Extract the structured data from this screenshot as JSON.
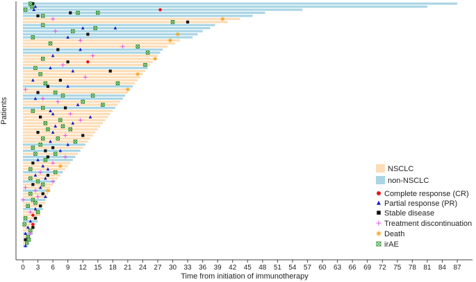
{
  "chart_data": {
    "type": "swimmer",
    "ylabel": "Patients",
    "xlabel": "Time from initiation of immunotherapy",
    "x_ticks": [
      0,
      3,
      6,
      9,
      12,
      15,
      18,
      21,
      24,
      27,
      30,
      33,
      36,
      39,
      42,
      45,
      48,
      51,
      54,
      57,
      60,
      63,
      66,
      69,
      72,
      75,
      78,
      81,
      84,
      87
    ],
    "xlim": [
      -0.5,
      89
    ],
    "legend": {
      "placement": "bottom-right",
      "bar_entries": [
        {
          "key": "nsclc",
          "label": "NSCLC",
          "color": "#FCDDB7"
        },
        {
          "key": "non",
          "label": "non-NSCLC",
          "color": "#A9D5E4"
        }
      ],
      "marker_entries": [
        {
          "key": "cr",
          "label": "Complete response (CR)",
          "color": "#E8151B"
        },
        {
          "key": "pr",
          "label": "Partial response (PR)",
          "color": "#1C1CB8"
        },
        {
          "key": "sd",
          "label": "Stable disease",
          "color": "#111111"
        },
        {
          "key": "td",
          "label": "Treatment discontinuation",
          "color": "#E64FE6"
        },
        {
          "key": "death",
          "label": "Death",
          "color": "#F5A623"
        },
        {
          "key": "irae",
          "label": "irAE",
          "color": "#1F8A1F"
        }
      ]
    },
    "bars": [
      {
        "d": 87,
        "g": "non"
      },
      {
        "d": 81,
        "g": "non"
      },
      {
        "d": 56,
        "g": "non"
      },
      {
        "d": 48.5,
        "g": "non"
      },
      {
        "d": 46,
        "g": "non"
      },
      {
        "d": 43.5,
        "g": "nsclc"
      },
      {
        "d": 41,
        "g": "nsclc"
      },
      {
        "d": 38.5,
        "g": "non"
      },
      {
        "d": 37.5,
        "g": "non"
      },
      {
        "d": 36,
        "g": "non"
      },
      {
        "d": 35,
        "g": "non"
      },
      {
        "d": 34,
        "g": "non"
      },
      {
        "d": 31.5,
        "g": "nsclc"
      },
      {
        "d": 30.5,
        "g": "nsclc"
      },
      {
        "d": 29,
        "g": "nsclc"
      },
      {
        "d": 28,
        "g": "non"
      },
      {
        "d": 27.5,
        "g": "non"
      },
      {
        "d": 27,
        "g": "nsclc"
      },
      {
        "d": 26.5,
        "g": "nsclc"
      },
      {
        "d": 26,
        "g": "nsclc"
      },
      {
        "d": 25.5,
        "g": "nsclc"
      },
      {
        "d": 25,
        "g": "non"
      },
      {
        "d": 24.5,
        "g": "nsclc"
      },
      {
        "d": 24,
        "g": "nsclc"
      },
      {
        "d": 23.5,
        "g": "nsclc"
      },
      {
        "d": 23,
        "g": "nsclc"
      },
      {
        "d": 22.5,
        "g": "nsclc"
      },
      {
        "d": 22,
        "g": "non"
      },
      {
        "d": 21.5,
        "g": "nsclc"
      },
      {
        "d": 21,
        "g": "nsclc"
      },
      {
        "d": 20.5,
        "g": "non"
      },
      {
        "d": 20,
        "g": "non"
      },
      {
        "d": 19.5,
        "g": "nsclc"
      },
      {
        "d": 19,
        "g": "nsclc"
      },
      {
        "d": 18.5,
        "g": "non"
      },
      {
        "d": 18,
        "g": "nsclc"
      },
      {
        "d": 17.5,
        "g": "nsclc"
      },
      {
        "d": 17,
        "g": "nsclc"
      },
      {
        "d": 16.5,
        "g": "nsclc"
      },
      {
        "d": 16,
        "g": "nsclc"
      },
      {
        "d": 15.5,
        "g": "nsclc"
      },
      {
        "d": 15,
        "g": "nsclc"
      },
      {
        "d": 14.5,
        "g": "nsclc"
      },
      {
        "d": 14,
        "g": "nsclc"
      },
      {
        "d": 13.5,
        "g": "nsclc"
      },
      {
        "d": 13,
        "g": "nsclc"
      },
      {
        "d": 12.5,
        "g": "non"
      },
      {
        "d": 12,
        "g": "nsclc"
      },
      {
        "d": 11.5,
        "g": "non"
      },
      {
        "d": 11,
        "g": "nsclc"
      },
      {
        "d": 10.5,
        "g": "non"
      },
      {
        "d": 10,
        "g": "non"
      },
      {
        "d": 9.5,
        "g": "nsclc"
      },
      {
        "d": 9,
        "g": "nsclc"
      },
      {
        "d": 8.5,
        "g": "nsclc"
      },
      {
        "d": 8,
        "g": "non"
      },
      {
        "d": 7.5,
        "g": "nsclc"
      },
      {
        "d": 7,
        "g": "nsclc"
      },
      {
        "d": 6.5,
        "g": "non"
      },
      {
        "d": 6,
        "g": "nsclc"
      },
      {
        "d": 5.5,
        "g": "nsclc"
      },
      {
        "d": 5.5,
        "g": "non"
      },
      {
        "d": 5,
        "g": "nsclc"
      },
      {
        "d": 5,
        "g": "nsclc"
      },
      {
        "d": 4.5,
        "g": "non"
      },
      {
        "d": 4.5,
        "g": "nsclc"
      },
      {
        "d": 4,
        "g": "nsclc"
      },
      {
        "d": 4,
        "g": "non"
      },
      {
        "d": 3.5,
        "g": "nsclc"
      },
      {
        "d": 3.5,
        "g": "nsclc"
      },
      {
        "d": 3,
        "g": "nsclc"
      },
      {
        "d": 3,
        "g": "non"
      },
      {
        "d": 2.5,
        "g": "nsclc"
      },
      {
        "d": 2.5,
        "g": "nsclc"
      },
      {
        "d": 2,
        "g": "nsclc"
      },
      {
        "d": 2,
        "g": "non"
      },
      {
        "d": 1.5,
        "g": "nsclc"
      },
      {
        "d": 1.5,
        "g": "nsclc"
      },
      {
        "d": 1,
        "g": "nsclc"
      },
      {
        "d": 1,
        "g": "non"
      }
    ],
    "events": [
      {
        "p": 0,
        "t": 2,
        "k": "sd"
      },
      {
        "p": 0,
        "t": 1.5,
        "k": "irae"
      },
      {
        "p": 1,
        "t": 2.5,
        "k": "pr"
      },
      {
        "p": 1,
        "t": 1.8,
        "k": "irae"
      },
      {
        "p": 2,
        "t": 0.5,
        "k": "irae"
      },
      {
        "p": 2,
        "t": 2.2,
        "k": "pr"
      },
      {
        "p": 2,
        "t": 27.5,
        "k": "cr"
      },
      {
        "p": 3,
        "t": 9.5,
        "k": "sd"
      },
      {
        "p": 3,
        "t": 11,
        "k": "irae"
      },
      {
        "p": 3,
        "t": 15,
        "k": "irae"
      },
      {
        "p": 4,
        "t": 3,
        "k": "sd"
      },
      {
        "p": 4,
        "t": 4,
        "k": "irae"
      },
      {
        "p": 5,
        "t": 40,
        "k": "death"
      },
      {
        "p": 5,
        "t": 6,
        "k": "td"
      },
      {
        "p": 6,
        "t": 33,
        "k": "sd"
      },
      {
        "p": 6,
        "t": 30,
        "k": "irae"
      },
      {
        "p": 7,
        "t": 4,
        "k": "irae"
      },
      {
        "p": 8,
        "t": 12,
        "k": "pr"
      },
      {
        "p": 8,
        "t": 14.5,
        "k": "irae"
      },
      {
        "p": 8,
        "t": 18.5,
        "k": "pr"
      },
      {
        "p": 9,
        "t": 6.5,
        "k": "td"
      },
      {
        "p": 9,
        "t": 10,
        "k": "irae"
      },
      {
        "p": 10,
        "t": 31,
        "k": "death"
      },
      {
        "p": 10,
        "t": 13,
        "k": "sd"
      },
      {
        "p": 11,
        "t": 2,
        "k": "irae"
      },
      {
        "p": 11,
        "t": 9,
        "k": "pr"
      },
      {
        "p": 12,
        "t": 29.5,
        "k": "death"
      },
      {
        "p": 12,
        "t": 11.5,
        "k": "td"
      },
      {
        "p": 13,
        "t": 5.5,
        "k": "irae"
      },
      {
        "p": 14,
        "t": 20,
        "k": "td"
      },
      {
        "p": 14,
        "t": 23,
        "k": "irae"
      },
      {
        "p": 15,
        "t": 11.5,
        "k": "pr"
      },
      {
        "p": 15,
        "t": 7,
        "k": "sd"
      },
      {
        "p": 16,
        "t": 25,
        "k": "irae"
      },
      {
        "p": 17,
        "t": 14,
        "k": "td"
      },
      {
        "p": 17,
        "t": 6,
        "k": "pr"
      },
      {
        "p": 18,
        "t": 4,
        "k": "irae"
      },
      {
        "p": 18,
        "t": 26.5,
        "k": "death"
      },
      {
        "p": 19,
        "t": 9,
        "k": "sd"
      },
      {
        "p": 19,
        "t": 13,
        "k": "cr"
      },
      {
        "p": 20,
        "t": 8,
        "k": "td"
      },
      {
        "p": 20,
        "t": 24.5,
        "k": "irae"
      },
      {
        "p": 21,
        "t": 2.5,
        "k": "irae"
      },
      {
        "p": 21,
        "t": 5.5,
        "k": "pr"
      },
      {
        "p": 22,
        "t": 10,
        "k": "pr"
      },
      {
        "p": 22,
        "t": 17.5,
        "k": "sd"
      },
      {
        "p": 23,
        "t": 23,
        "k": "death"
      },
      {
        "p": 23,
        "t": 3.5,
        "k": "irae"
      },
      {
        "p": 24,
        "t": 12.5,
        "k": "td"
      },
      {
        "p": 25,
        "t": 7.5,
        "k": "sd"
      },
      {
        "p": 25,
        "t": 2,
        "k": "pr"
      },
      {
        "p": 26,
        "t": 4.5,
        "k": "irae"
      },
      {
        "p": 26,
        "t": 19,
        "k": "irae"
      },
      {
        "p": 27,
        "t": 5,
        "k": "sd"
      },
      {
        "p": 27,
        "t": 9,
        "k": "pr"
      },
      {
        "p": 28,
        "t": 0.5,
        "k": "td"
      },
      {
        "p": 28,
        "t": 21,
        "k": "death"
      },
      {
        "p": 29,
        "t": 3,
        "k": "sd"
      },
      {
        "p": 29,
        "t": 6.5,
        "k": "irae"
      },
      {
        "p": 30,
        "t": 8,
        "k": "irae"
      },
      {
        "p": 30,
        "t": 14,
        "k": "irae"
      },
      {
        "p": 31,
        "t": 2.5,
        "k": "pr"
      },
      {
        "p": 31,
        "t": 4,
        "k": "td"
      },
      {
        "p": 32,
        "t": 7,
        "k": "td"
      },
      {
        "p": 32,
        "t": 12,
        "k": "irae"
      },
      {
        "p": 33,
        "t": 11,
        "k": "pr"
      },
      {
        "p": 33,
        "t": 16,
        "k": "irae"
      },
      {
        "p": 34,
        "t": 4,
        "k": "irae"
      },
      {
        "p": 34,
        "t": 8.5,
        "k": "sd"
      },
      {
        "p": 35,
        "t": 2,
        "k": "irae"
      },
      {
        "p": 35,
        "t": 5.5,
        "k": "pr"
      },
      {
        "p": 36,
        "t": 6,
        "k": "pr"
      },
      {
        "p": 36,
        "t": 9.5,
        "k": "td"
      },
      {
        "p": 37,
        "t": 3.5,
        "k": "sd"
      },
      {
        "p": 37,
        "t": 13.5,
        "k": "pr"
      },
      {
        "p": 38,
        "t": 7.5,
        "k": "irae"
      },
      {
        "p": 38,
        "t": 11.5,
        "k": "td"
      },
      {
        "p": 39,
        "t": 4.5,
        "k": "irae"
      },
      {
        "p": 39,
        "t": 10,
        "k": "pr"
      },
      {
        "p": 40,
        "t": 6.5,
        "k": "pr"
      },
      {
        "p": 40,
        "t": 8,
        "k": "irae"
      },
      {
        "p": 41,
        "t": 5,
        "k": "irae"
      },
      {
        "p": 41,
        "t": 9.5,
        "k": "irae"
      },
      {
        "p": 42,
        "t": 3,
        "k": "sd"
      },
      {
        "p": 42,
        "t": 6,
        "k": "pr"
      },
      {
        "p": 43,
        "t": 8.5,
        "k": "td"
      },
      {
        "p": 43,
        "t": 12,
        "k": "sd"
      },
      {
        "p": 44,
        "t": 4,
        "k": "irae"
      },
      {
        "p": 44,
        "t": 7,
        "k": "irae"
      },
      {
        "p": 45,
        "t": 5.5,
        "k": "pr"
      },
      {
        "p": 45,
        "t": 10.5,
        "k": "irae"
      },
      {
        "p": 46,
        "t": 3.5,
        "k": "irae"
      },
      {
        "p": 46,
        "t": 9,
        "k": "pr"
      },
      {
        "p": 47,
        "t": 6,
        "k": "sd"
      },
      {
        "p": 47,
        "t": 2,
        "k": "irae"
      },
      {
        "p": 48,
        "t": 7.5,
        "k": "pr"
      },
      {
        "p": 48,
        "t": 4.5,
        "k": "sd"
      },
      {
        "p": 49,
        "t": 2.5,
        "k": "irae"
      },
      {
        "p": 49,
        "t": 6.5,
        "k": "irae"
      },
      {
        "p": 50,
        "t": 5,
        "k": "sd"
      },
      {
        "p": 50,
        "t": 8.5,
        "k": "td"
      },
      {
        "p": 51,
        "t": 3,
        "k": "pr"
      },
      {
        "p": 51,
        "t": 4.5,
        "k": "irae"
      },
      {
        "p": 52,
        "t": 6,
        "k": "td"
      },
      {
        "p": 52,
        "t": 2,
        "k": "sd"
      },
      {
        "p": 53,
        "t": 4,
        "k": "pr"
      },
      {
        "p": 53,
        "t": 7.5,
        "k": "death"
      },
      {
        "p": 54,
        "t": 1.5,
        "k": "irae"
      },
      {
        "p": 54,
        "t": 5,
        "k": "pr"
      },
      {
        "p": 55,
        "t": 3.5,
        "k": "td"
      },
      {
        "p": 55,
        "t": 6.5,
        "k": "irae"
      },
      {
        "p": 56,
        "t": 2.5,
        "k": "pr"
      },
      {
        "p": 56,
        "t": 5,
        "k": "sd"
      },
      {
        "p": 57,
        "t": 4.5,
        "k": "pr"
      },
      {
        "p": 57,
        "t": 1.5,
        "k": "irae"
      },
      {
        "p": 58,
        "t": 3,
        "k": "irae"
      },
      {
        "p": 58,
        "t": 6,
        "k": "td"
      },
      {
        "p": 59,
        "t": 2,
        "k": "sd"
      },
      {
        "p": 59,
        "t": 4,
        "k": "irae"
      },
      {
        "p": 60,
        "t": 0.5,
        "k": "td"
      },
      {
        "p": 60,
        "t": 3.5,
        "k": "pr"
      },
      {
        "p": 61,
        "t": 2.5,
        "k": "td"
      },
      {
        "p": 61,
        "t": 5,
        "k": "death"
      },
      {
        "p": 62,
        "t": 1.5,
        "k": "irae"
      },
      {
        "p": 62,
        "t": 4,
        "k": "sd"
      },
      {
        "p": 63,
        "t": 3,
        "k": "td"
      },
      {
        "p": 63,
        "t": 4.5,
        "k": "pr"
      },
      {
        "p": 64,
        "t": 2,
        "k": "irae"
      },
      {
        "p": 64,
        "t": 0,
        "k": "td"
      },
      {
        "p": 65,
        "t": 2.5,
        "k": "irae"
      },
      {
        "p": 66,
        "t": 3.5,
        "k": "sd"
      },
      {
        "p": 66,
        "t": 1,
        "k": "irae"
      },
      {
        "p": 67,
        "t": 2.5,
        "k": "pr"
      },
      {
        "p": 68,
        "t": 1.5,
        "k": "td"
      },
      {
        "p": 68,
        "t": 3,
        "k": "irae"
      },
      {
        "p": 69,
        "t": 2,
        "k": "cr"
      },
      {
        "p": 70,
        "t": 0.5,
        "k": "irae"
      },
      {
        "p": 70,
        "t": 2.5,
        "k": "sd"
      },
      {
        "p": 71,
        "t": 1.5,
        "k": "pr"
      },
      {
        "p": 72,
        "t": 2,
        "k": "cr"
      },
      {
        "p": 72,
        "t": 0.3,
        "k": "irae"
      },
      {
        "p": 73,
        "t": 1,
        "k": "pr"
      },
      {
        "p": 73,
        "t": 2,
        "k": "sd"
      },
      {
        "p": 74,
        "t": 1.5,
        "k": "irae"
      },
      {
        "p": 75,
        "t": 0.5,
        "k": "pr"
      },
      {
        "p": 75,
        "t": 1.5,
        "k": "td"
      },
      {
        "p": 76,
        "t": 1,
        "k": "irae"
      },
      {
        "p": 77,
        "t": 0.5,
        "k": "sd"
      },
      {
        "p": 77,
        "t": 1.2,
        "k": "irae"
      },
      {
        "p": 78,
        "t": 0.8,
        "k": "irae"
      },
      {
        "p": 79,
        "t": 0.5,
        "k": "pr"
      }
    ]
  }
}
